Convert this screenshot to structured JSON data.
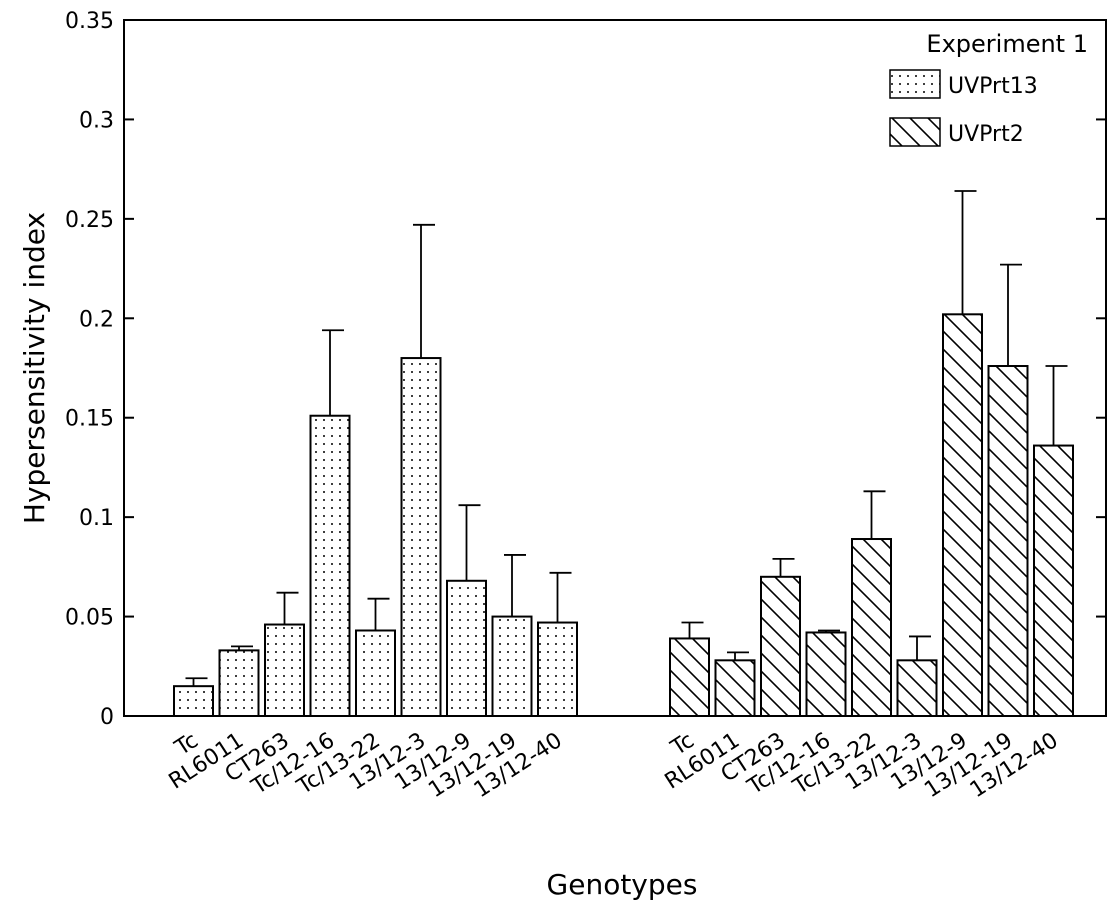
{
  "chart_data": {
    "type": "bar",
    "title": "",
    "xlabel": "Genotypes",
    "ylabel": "Hypersensitivity index",
    "ylim": [
      0,
      0.35
    ],
    "yticks": [
      "0",
      "0.05",
      "0.1",
      "0.15",
      "0.2",
      "0.25",
      "0.3",
      "0.35"
    ],
    "legend": {
      "title": "Experiment 1",
      "placement": "top-right",
      "entries": [
        {
          "name": "UVPrt13",
          "pattern": "dots"
        },
        {
          "name": "UVPrt2",
          "pattern": "hatch"
        }
      ]
    },
    "categories": [
      "Tc",
      "RL6011",
      "CT263",
      "Tc/12-16",
      "Tc/13-22",
      "13/12-3",
      "13/12-9",
      "13/12-19",
      "13/12-40"
    ],
    "series": [
      {
        "name": "UVPrt13",
        "values": [
          0.015,
          0.033,
          0.046,
          0.151,
          0.043,
          0.18,
          0.068,
          0.05,
          0.047
        ],
        "errors": [
          0.004,
          0.002,
          0.016,
          0.043,
          0.016,
          0.067,
          0.038,
          0.031,
          0.025
        ]
      },
      {
        "name": "UVPrt2",
        "values": [
          0.039,
          0.028,
          0.07,
          0.042,
          0.089,
          0.028,
          0.202,
          0.176,
          0.136
        ],
        "errors": [
          0.008,
          0.004,
          0.009,
          0.001,
          0.024,
          0.012,
          0.062,
          0.051,
          0.04
        ]
      }
    ],
    "grid": false
  }
}
